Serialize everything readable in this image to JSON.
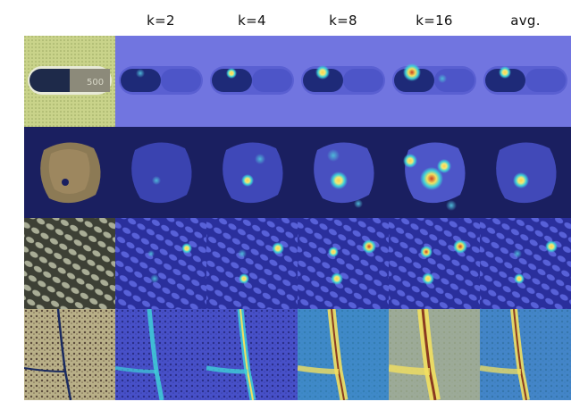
{
  "columns": [
    "k=2",
    "k=4",
    "k=8",
    "k=16",
    "avg."
  ],
  "rows": [
    {
      "subject": "capsule",
      "pill_text": "500"
    },
    {
      "subject": "hazelnut"
    },
    {
      "subject": "grid"
    },
    {
      "subject": "wood"
    }
  ],
  "colors": {
    "overlay_blue": "#4a52d8",
    "overlay_dark": "#1e2a78",
    "hot_yellow": "#f2e060",
    "hot_red": "#d8502a",
    "cyan": "#3fd0d8"
  }
}
